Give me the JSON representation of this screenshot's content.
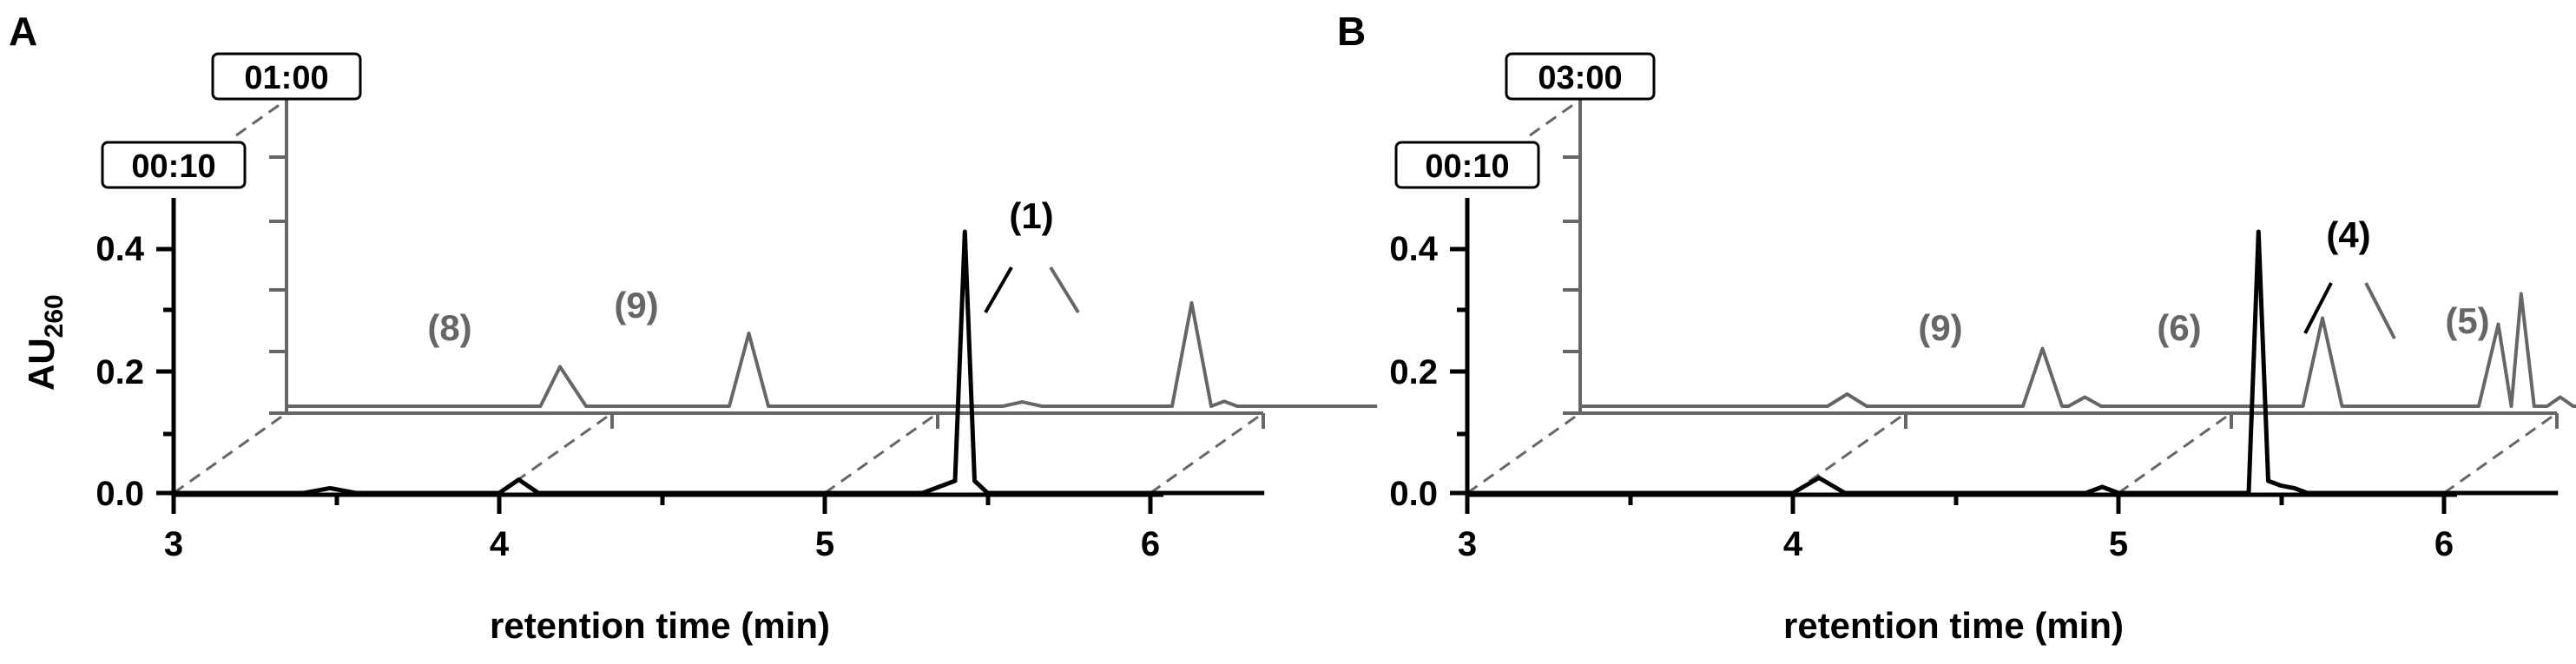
{
  "chart_data": [
    {
      "type": "line",
      "panel": "A",
      "xlabel": "retention time (min)",
      "ylabel": "AU",
      "ylabel_sub": "260",
      "xlim": [
        3,
        6.35
      ],
      "ylim": [
        0,
        0.5
      ],
      "x_ticks": [
        "3",
        "4",
        "5",
        "6"
      ],
      "y_ticks": [
        "0.0",
        "0.2",
        "0.4"
      ],
      "series": [
        {
          "name": "00:10",
          "color": "#000000",
          "x": [
            3.0,
            3.4,
            3.48,
            3.56,
            4.0,
            4.06,
            4.12,
            4.6,
            5.3,
            5.4,
            5.43,
            5.46,
            5.5,
            6.0,
            6.35
          ],
          "y": [
            0.0,
            0.0,
            0.008,
            0.0,
            0.0,
            0.022,
            0.0,
            0.0,
            0.0,
            0.02,
            0.43,
            0.02,
            0.0,
            0.0,
            0.0
          ]
        },
        {
          "name": "01:00",
          "color": "#666666",
          "x": [
            3.0,
            3.78,
            3.84,
            3.92,
            4.36,
            4.42,
            4.48,
            5.2,
            5.26,
            5.32,
            5.72,
            5.78,
            5.84,
            5.88,
            5.92,
            6.35
          ],
          "y": [
            0.0,
            0.0,
            0.065,
            0.0,
            0.0,
            0.12,
            0.0,
            0.0,
            0.007,
            0.0,
            0.0,
            0.17,
            0.0,
            0.008,
            0.0,
            0.0
          ]
        }
      ],
      "annotations": [
        "(8)",
        "(9)",
        "(1)"
      ]
    },
    {
      "type": "line",
      "panel": "B",
      "xlabel": "retention time (min)",
      "xlim": [
        3,
        6.35
      ],
      "ylim": [
        0,
        0.5
      ],
      "x_ticks": [
        "3",
        "4",
        "5",
        "6"
      ],
      "y_ticks": [
        "0.0",
        "0.2",
        "0.4"
      ],
      "series": [
        {
          "name": "00:10",
          "color": "#000000",
          "x": [
            3.0,
            4.0,
            4.08,
            4.16,
            4.9,
            4.95,
            5.0,
            5.4,
            5.43,
            5.46,
            5.5,
            5.54,
            5.58,
            6.0,
            6.35
          ],
          "y": [
            0.0,
            0.0,
            0.025,
            0.0,
            0.0,
            0.01,
            0.0,
            0.0,
            0.43,
            0.02,
            0.012,
            0.008,
            0.0,
            0.0,
            0.0
          ]
        },
        {
          "name": "03:00",
          "color": "#666666",
          "x": [
            3.0,
            3.76,
            3.82,
            3.88,
            4.36,
            4.42,
            4.48,
            4.5,
            4.55,
            4.6,
            5.22,
            5.28,
            5.34,
            5.76,
            5.82,
            5.86,
            5.89,
            5.93,
            5.97,
            6.01,
            6.05,
            6.35
          ],
          "y": [
            0.0,
            0.0,
            0.02,
            0.0,
            0.0,
            0.095,
            0.0,
            0.0,
            0.015,
            0.0,
            0.0,
            0.145,
            0.0,
            0.0,
            0.135,
            0.0,
            0.185,
            0.0,
            0.0,
            0.015,
            0.0,
            0.0
          ]
        }
      ],
      "annotations": [
        "(9)",
        "(6)",
        "(4)",
        "(5)"
      ]
    }
  ],
  "panels": {
    "a": {
      "label": "A",
      "front_time": "00:10",
      "back_time": "01:00",
      "annotations": {
        "p8": "(8)",
        "p9": "(9)",
        "p1": "(1)"
      }
    },
    "b": {
      "label": "B",
      "front_time": "00:10",
      "back_time": "03:00",
      "annotations": {
        "p9": "(9)",
        "p6": "(6)",
        "p4": "(4)",
        "p5": "(5)"
      }
    }
  },
  "colors": {
    "front": "#000000",
    "back": "#666666"
  }
}
